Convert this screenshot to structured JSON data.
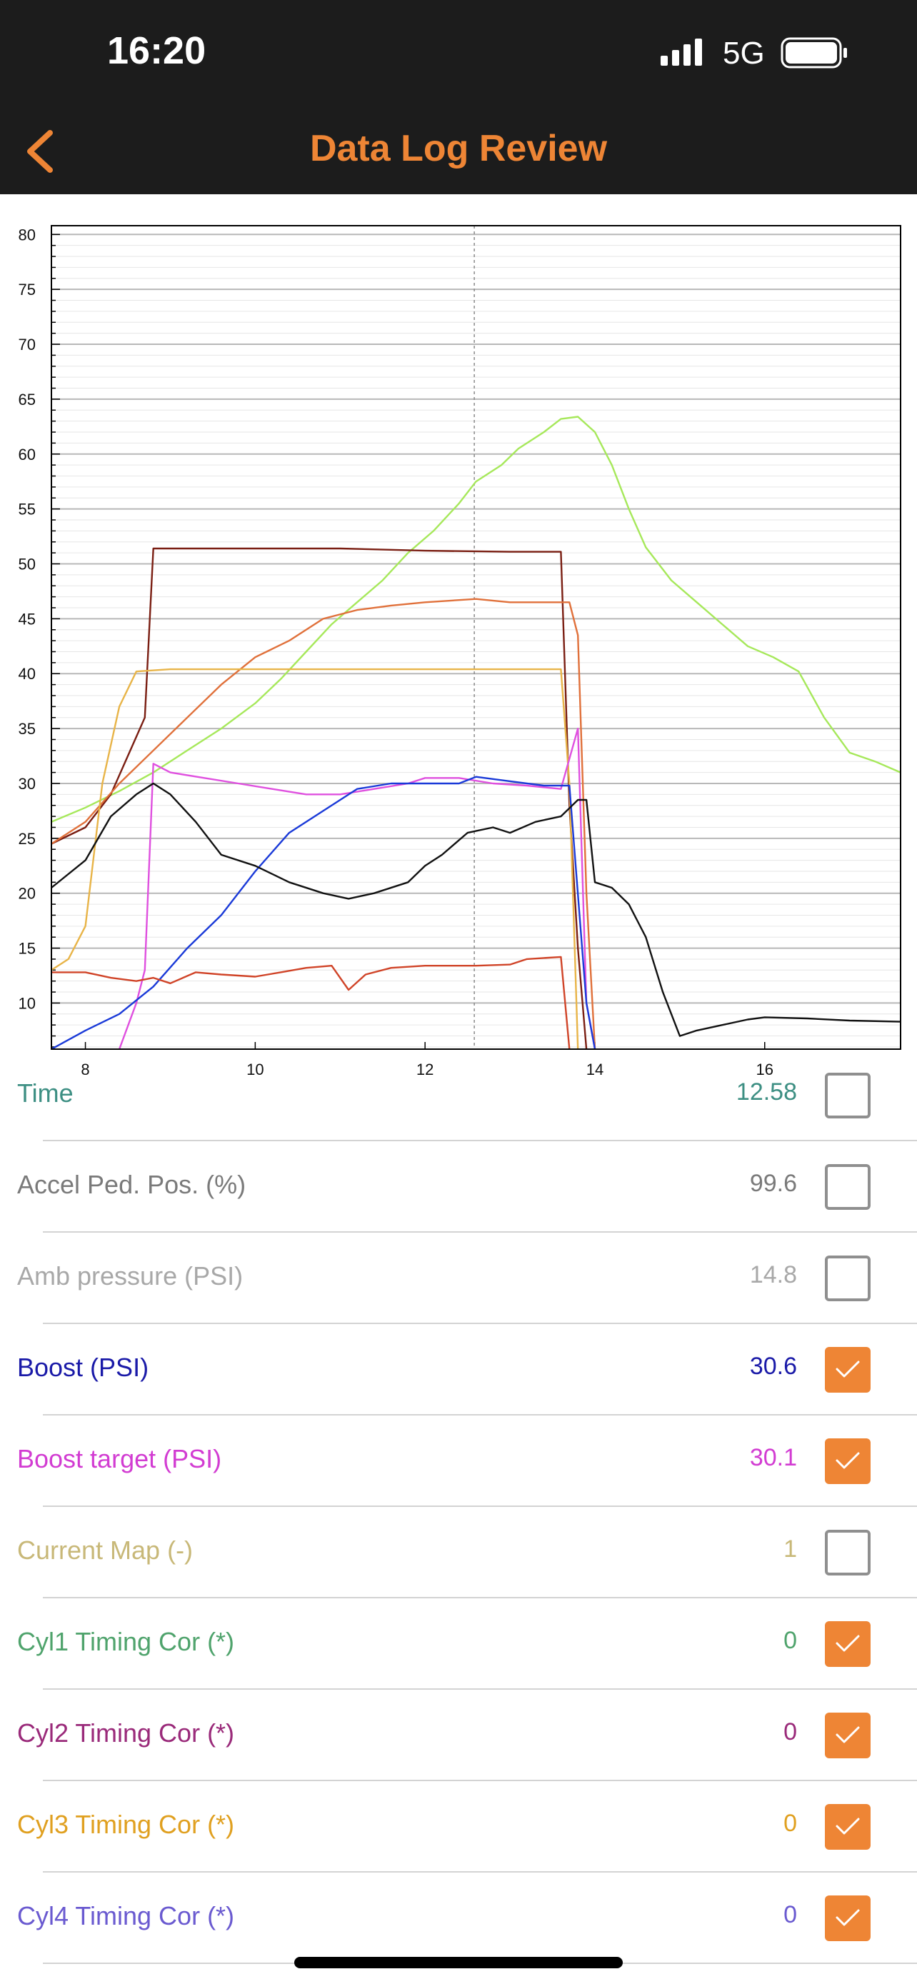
{
  "status_bar": {
    "time": "16:20",
    "network": "5G"
  },
  "nav": {
    "title": "Data Log Review",
    "back_icon": "chevron-left-icon"
  },
  "colors": {
    "accent": "#ee8535",
    "bar_background": "#1c1c1c"
  },
  "chart_data": {
    "type": "line",
    "x_ticks": [
      "8",
      "10",
      "12",
      "14",
      "16"
    ],
    "y_ticks": [
      "80",
      "75",
      "70",
      "65",
      "60",
      "55",
      "50",
      "45",
      "40",
      "35",
      "30",
      "25",
      "20",
      "15",
      "10"
    ],
    "xlim": [
      7.6,
      17.6
    ],
    "ylim": [
      5.8,
      80.8
    ],
    "grid": true,
    "cursor_x": 12.58,
    "series": [
      {
        "color": "#a6e85a",
        "points": [
          [
            7.6,
            26.5
          ],
          [
            8.0,
            27.8
          ],
          [
            8.4,
            29.3
          ],
          [
            8.8,
            31.0
          ],
          [
            9.2,
            33.0
          ],
          [
            9.6,
            35.0
          ],
          [
            10.0,
            37.3
          ],
          [
            10.3,
            39.5
          ],
          [
            10.6,
            42.0
          ],
          [
            10.9,
            44.5
          ],
          [
            11.2,
            46.5
          ],
          [
            11.5,
            48.5
          ],
          [
            11.8,
            51.0
          ],
          [
            12.1,
            53.0
          ],
          [
            12.4,
            55.5
          ],
          [
            12.6,
            57.5
          ],
          [
            12.9,
            59.0
          ],
          [
            13.1,
            60.5
          ],
          [
            13.4,
            62.0
          ],
          [
            13.6,
            63.2
          ],
          [
            13.8,
            63.4
          ],
          [
            14.0,
            62.0
          ],
          [
            14.2,
            59.0
          ],
          [
            14.4,
            55.0
          ],
          [
            14.6,
            51.5
          ],
          [
            14.9,
            48.5
          ],
          [
            15.2,
            46.5
          ],
          [
            15.5,
            44.5
          ],
          [
            15.8,
            42.5
          ],
          [
            16.1,
            41.5
          ],
          [
            16.4,
            40.2
          ],
          [
            16.7,
            36.0
          ],
          [
            17.0,
            32.8
          ],
          [
            17.3,
            32.0
          ],
          [
            17.6,
            31.0
          ]
        ]
      },
      {
        "color": "#7a1e12",
        "points": [
          [
            7.6,
            24.5
          ],
          [
            8.0,
            26.0
          ],
          [
            8.3,
            29.0
          ],
          [
            8.5,
            32.5
          ],
          [
            8.7,
            36.0
          ],
          [
            8.8,
            51.4
          ],
          [
            10.0,
            51.4
          ],
          [
            11.0,
            51.4
          ],
          [
            12.0,
            51.2
          ],
          [
            13.0,
            51.1
          ],
          [
            13.6,
            51.1
          ],
          [
            13.7,
            28.0
          ],
          [
            13.8,
            15.0
          ],
          [
            13.9,
            5.8
          ]
        ]
      },
      {
        "color": "#e0703a",
        "points": [
          [
            7.6,
            24.5
          ],
          [
            8.0,
            26.5
          ],
          [
            8.4,
            30.0
          ],
          [
            8.8,
            33.0
          ],
          [
            9.2,
            36.0
          ],
          [
            9.6,
            39.0
          ],
          [
            10.0,
            41.5
          ],
          [
            10.4,
            43.0
          ],
          [
            10.8,
            45.0
          ],
          [
            11.2,
            45.8
          ],
          [
            11.6,
            46.2
          ],
          [
            12.0,
            46.5
          ],
          [
            12.6,
            46.8
          ],
          [
            13.0,
            46.5
          ],
          [
            13.5,
            46.5
          ],
          [
            13.7,
            46.5
          ],
          [
            13.8,
            43.5
          ],
          [
            13.9,
            20.0
          ],
          [
            14.0,
            5.8
          ]
        ]
      },
      {
        "color": "#e8b448",
        "points": [
          [
            7.6,
            13.0
          ],
          [
            7.8,
            14.0
          ],
          [
            8.0,
            17.0
          ],
          [
            8.2,
            30.0
          ],
          [
            8.4,
            37.0
          ],
          [
            8.6,
            40.2
          ],
          [
            9.0,
            40.4
          ],
          [
            10.0,
            40.4
          ],
          [
            11.0,
            40.4
          ],
          [
            12.0,
            40.4
          ],
          [
            13.0,
            40.4
          ],
          [
            13.6,
            40.4
          ],
          [
            13.7,
            30.0
          ],
          [
            13.8,
            5.8
          ]
        ]
      },
      {
        "color": "#df50df",
        "points": [
          [
            8.4,
            5.8
          ],
          [
            8.6,
            10.0
          ],
          [
            8.7,
            13.0
          ],
          [
            8.8,
            31.8
          ],
          [
            9.0,
            31.0
          ],
          [
            9.4,
            30.5
          ],
          [
            9.8,
            30.0
          ],
          [
            10.2,
            29.5
          ],
          [
            10.6,
            29.0
          ],
          [
            11.0,
            29.0
          ],
          [
            11.4,
            29.5
          ],
          [
            11.8,
            30.0
          ],
          [
            12.0,
            30.5
          ],
          [
            12.4,
            30.5
          ],
          [
            12.8,
            30.0
          ],
          [
            13.2,
            29.8
          ],
          [
            13.6,
            29.5
          ],
          [
            13.8,
            35.0
          ],
          [
            13.9,
            10.0
          ],
          [
            14.0,
            5.8
          ]
        ]
      },
      {
        "color": "#1a3ad8",
        "points": [
          [
            7.6,
            5.8
          ],
          [
            8.0,
            7.5
          ],
          [
            8.4,
            9.0
          ],
          [
            8.8,
            11.5
          ],
          [
            9.2,
            15.0
          ],
          [
            9.6,
            18.0
          ],
          [
            10.0,
            22.0
          ],
          [
            10.4,
            25.5
          ],
          [
            10.8,
            27.5
          ],
          [
            11.2,
            29.5
          ],
          [
            11.6,
            30.0
          ],
          [
            12.0,
            30.0
          ],
          [
            12.4,
            30.0
          ],
          [
            12.6,
            30.6
          ],
          [
            13.0,
            30.2
          ],
          [
            13.4,
            29.8
          ],
          [
            13.7,
            29.8
          ],
          [
            13.9,
            10.0
          ],
          [
            14.0,
            5.8
          ]
        ]
      },
      {
        "color": "#d04428",
        "points": [
          [
            7.6,
            12.8
          ],
          [
            8.0,
            12.8
          ],
          [
            8.3,
            12.3
          ],
          [
            8.6,
            12.0
          ],
          [
            8.8,
            12.3
          ],
          [
            9.0,
            11.8
          ],
          [
            9.3,
            12.8
          ],
          [
            9.6,
            12.6
          ],
          [
            10.0,
            12.4
          ],
          [
            10.3,
            12.8
          ],
          [
            10.6,
            13.2
          ],
          [
            10.9,
            13.4
          ],
          [
            11.1,
            11.2
          ],
          [
            11.3,
            12.6
          ],
          [
            11.6,
            13.2
          ],
          [
            12.0,
            13.4
          ],
          [
            12.6,
            13.4
          ],
          [
            13.0,
            13.5
          ],
          [
            13.2,
            14.0
          ],
          [
            13.6,
            14.2
          ],
          [
            13.7,
            5.8
          ]
        ]
      },
      {
        "color": "#111111",
        "points": [
          [
            7.6,
            20.5
          ],
          [
            8.0,
            23.0
          ],
          [
            8.3,
            27.0
          ],
          [
            8.6,
            29.0
          ],
          [
            8.8,
            30.0
          ],
          [
            9.0,
            29.0
          ],
          [
            9.3,
            26.5
          ],
          [
            9.6,
            23.5
          ],
          [
            10.0,
            22.5
          ],
          [
            10.4,
            21.0
          ],
          [
            10.8,
            20.0
          ],
          [
            11.1,
            19.5
          ],
          [
            11.4,
            20.0
          ],
          [
            11.8,
            21.0
          ],
          [
            12.0,
            22.5
          ],
          [
            12.2,
            23.5
          ],
          [
            12.5,
            25.5
          ],
          [
            12.8,
            26.0
          ],
          [
            13.0,
            25.5
          ],
          [
            13.3,
            26.5
          ],
          [
            13.6,
            27.0
          ],
          [
            13.8,
            28.5
          ],
          [
            13.9,
            28.5
          ],
          [
            14.0,
            21.0
          ],
          [
            14.2,
            20.5
          ],
          [
            14.4,
            19.0
          ],
          [
            14.6,
            16.0
          ],
          [
            14.8,
            11.0
          ],
          [
            15.0,
            7.0
          ],
          [
            15.2,
            7.5
          ],
          [
            15.5,
            8.0
          ],
          [
            15.8,
            8.5
          ],
          [
            16.0,
            8.7
          ],
          [
            16.5,
            8.6
          ],
          [
            17.0,
            8.4
          ],
          [
            17.6,
            8.3
          ]
        ]
      }
    ]
  },
  "parameters": [
    {
      "label": "Time",
      "value": "12.58",
      "color": "#3d8f83",
      "checked": false
    },
    {
      "label": "Accel Ped. Pos. (%)",
      "value": "99.6",
      "color": "#7a7a7a",
      "checked": false
    },
    {
      "label": "Amb pressure (PSI)",
      "value": "14.8",
      "color": "#a8a8a8",
      "checked": false
    },
    {
      "label": "Boost (PSI)",
      "value": "30.6",
      "color": "#1a1aa8",
      "checked": true
    },
    {
      "label": "Boost target (PSI)",
      "value": "30.1",
      "color": "#d23cd2",
      "checked": true
    },
    {
      "label": "Current Map (-)",
      "value": "1",
      "color": "#c8b878",
      "checked": false
    },
    {
      "label": "Cyl1 Timing Cor (*)",
      "value": "0",
      "color": "#4fa36c",
      "checked": true
    },
    {
      "label": "Cyl2 Timing Cor (*)",
      "value": "0",
      "color": "#9a2a7a",
      "checked": true
    },
    {
      "label": "Cyl3 Timing Cor (*)",
      "value": "0",
      "color": "#e0a020",
      "checked": true
    },
    {
      "label": "Cyl4 Timing Cor (*)",
      "value": "0",
      "color": "#6a5ad0",
      "checked": true
    }
  ]
}
